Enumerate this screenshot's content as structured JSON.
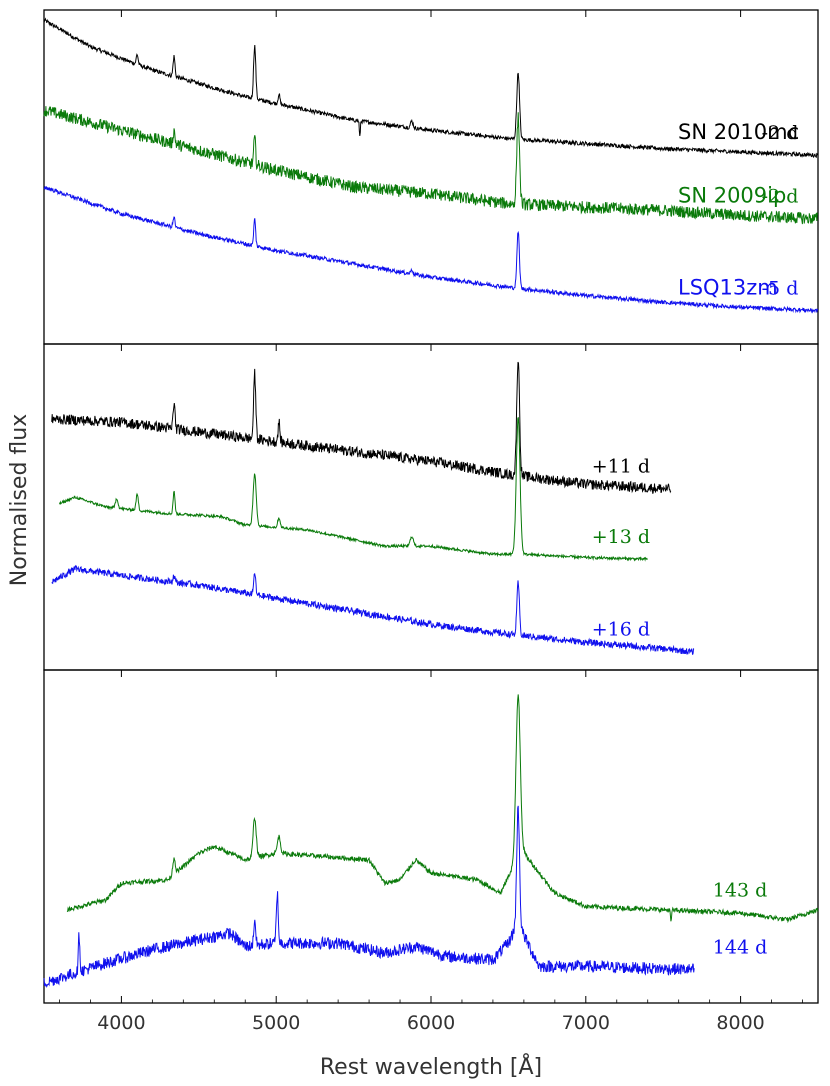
{
  "chart_data": {
    "type": "line",
    "xlabel": "Rest wavelength [Å]",
    "ylabel": "Normalised flux",
    "xlim": [
      3500,
      8500
    ],
    "xticks": [
      4000,
      5000,
      6000,
      7000,
      8000
    ],
    "tick_labels": [
      "4000",
      "5000",
      "6000",
      "7000",
      "8000"
    ],
    "grid": false,
    "colors": {
      "SN 2010mc": "#000000",
      "SN 2009ip": "#0a7a0a",
      "LSQ13zm": "#1010ee"
    },
    "lines": {
      "Hdelta": 4102,
      "Hgamma": 4340,
      "Hbeta": 4861,
      "FeII": 5018,
      "HeI": 5876,
      "Halpha": 6563
    },
    "panels": [
      {
        "ylim": [
          0,
          1
        ],
        "series": [
          {
            "object": "SN 2010mc",
            "epoch": "-2 d",
            "x_range": [
              3500,
              8500
            ],
            "continuum": [
              [
                3500,
                0.97
              ],
              [
                3800,
                0.89
              ],
              [
                4200,
                0.82
              ],
              [
                4800,
                0.74
              ],
              [
                5500,
                0.67
              ],
              [
                6000,
                0.64
              ],
              [
                6500,
                0.615
              ],
              [
                7000,
                0.6
              ],
              [
                7500,
                0.585
              ],
              [
                8000,
                0.575
              ],
              [
                8500,
                0.565
              ]
            ],
            "noise": 0.006,
            "lines": [
              [
                4102,
                0.03,
                6
              ],
              [
                4340,
                0.06,
                6
              ],
              [
                4861,
                0.16,
                7
              ],
              [
                5018,
                0.03,
                6
              ],
              [
                5876,
                0.02,
                8
              ],
              [
                6563,
                0.2,
                9
              ],
              [
                5540,
                -0.05,
                3
              ]
            ]
          },
          {
            "object": "SN 2009ip",
            "epoch": "-2 d",
            "x_range": [
              3500,
              8500
            ],
            "continuum": [
              [
                3500,
                0.7
              ],
              [
                4000,
                0.64
              ],
              [
                4500,
                0.58
              ],
              [
                5000,
                0.52
              ],
              [
                5500,
                0.47
              ],
              [
                6000,
                0.45
              ],
              [
                6500,
                0.42
              ],
              [
                7000,
                0.41
              ],
              [
                7500,
                0.4
              ],
              [
                8000,
                0.385
              ],
              [
                8500,
                0.375
              ]
            ],
            "noise": 0.018,
            "lines": [
              [
                4340,
                0.04,
                6
              ],
              [
                4861,
                0.08,
                6
              ],
              [
                6563,
                0.26,
                9
              ]
            ]
          },
          {
            "object": "LSQ13zm",
            "epoch": "-5 d",
            "x_range": [
              3500,
              8500
            ],
            "continuum": [
              [
                3500,
                0.47
              ],
              [
                4000,
                0.39
              ],
              [
                4500,
                0.33
              ],
              [
                5000,
                0.28
              ],
              [
                5500,
                0.24
              ],
              [
                6000,
                0.2
              ],
              [
                6500,
                0.17
              ],
              [
                7000,
                0.145
              ],
              [
                7500,
                0.125
              ],
              [
                8000,
                0.11
              ],
              [
                8500,
                0.1
              ]
            ],
            "noise": 0.006,
            "lines": [
              [
                4340,
                0.03,
                6
              ],
              [
                4861,
                0.08,
                6
              ],
              [
                5876,
                0.015,
                6
              ],
              [
                6563,
                0.17,
                8
              ]
            ]
          }
        ]
      },
      {
        "ylim": [
          0,
          1
        ],
        "series": [
          {
            "object": "SN 2010mc",
            "epoch": "+11 d",
            "x_range": [
              3550,
              7550
            ],
            "continuum": [
              [
                3550,
                0.77
              ],
              [
                4000,
                0.76
              ],
              [
                4500,
                0.73
              ],
              [
                5000,
                0.7
              ],
              [
                5500,
                0.67
              ],
              [
                6000,
                0.64
              ],
              [
                6500,
                0.6
              ],
              [
                7000,
                0.57
              ],
              [
                7550,
                0.555
              ]
            ],
            "noise": 0.016,
            "lines": [
              [
                4340,
                0.08,
                6
              ],
              [
                4861,
                0.2,
                7
              ],
              [
                5018,
                0.06,
                6
              ],
              [
                6563,
                0.36,
                9
              ]
            ]
          },
          {
            "object": "SN 2009ip",
            "epoch": "+13 d",
            "x_range": [
              3600,
              7400
            ],
            "continuum": [
              [
                3600,
                0.51
              ],
              [
                3700,
                0.53
              ],
              [
                3900,
                0.5
              ],
              [
                4300,
                0.48
              ],
              [
                4500,
                0.475
              ],
              [
                4650,
                0.47
              ],
              [
                4800,
                0.445
              ],
              [
                5200,
                0.43
              ],
              [
                5500,
                0.4
              ],
              [
                5700,
                0.38
              ],
              [
                6000,
                0.38
              ],
              [
                6400,
                0.355
              ],
              [
                6600,
                0.355
              ],
              [
                7000,
                0.345
              ],
              [
                7400,
                0.34
              ]
            ],
            "noise": 0.004,
            "lines": [
              [
                3970,
                0.03,
                8
              ],
              [
                4102,
                0.05,
                7
              ],
              [
                4340,
                0.07,
                6
              ],
              [
                4861,
                0.16,
                10
              ],
              [
                5018,
                0.03,
                8
              ],
              [
                5876,
                0.03,
                10
              ],
              [
                6563,
                0.42,
                12
              ]
            ]
          },
          {
            "object": "LSQ13zm",
            "epoch": "+16 d",
            "x_range": [
              3550,
              7700
            ],
            "continuum": [
              [
                3550,
                0.27
              ],
              [
                3700,
                0.31
              ],
              [
                4000,
                0.29
              ],
              [
                4500,
                0.26
              ],
              [
                5000,
                0.22
              ],
              [
                5500,
                0.18
              ],
              [
                6000,
                0.14
              ],
              [
                6500,
                0.11
              ],
              [
                7000,
                0.085
              ],
              [
                7500,
                0.065
              ],
              [
                7700,
                0.055
              ]
            ],
            "noise": 0.01,
            "lines": [
              [
                4340,
                0.02,
                6
              ],
              [
                4861,
                0.07,
                6
              ],
              [
                6563,
                0.16,
                8
              ]
            ]
          }
        ]
      },
      {
        "ylim": [
          0,
          1
        ],
        "series": [
          {
            "object": "SN 2009ip",
            "epoch": "143 d",
            "x_range": [
              3650,
              8500
            ],
            "continuum": [
              [
                3650,
                0.28
              ],
              [
                3900,
                0.31
              ],
              [
                4000,
                0.36
              ],
              [
                4300,
                0.37
              ],
              [
                4500,
                0.45
              ],
              [
                4600,
                0.47
              ],
              [
                4800,
                0.43
              ],
              [
                5000,
                0.45
              ],
              [
                5300,
                0.44
              ],
              [
                5600,
                0.43
              ],
              [
                5700,
                0.36
              ],
              [
                5800,
                0.37
              ],
              [
                5900,
                0.43
              ],
              [
                6000,
                0.39
              ],
              [
                6300,
                0.37
              ],
              [
                6450,
                0.33
              ],
              [
                6520,
                0.4
              ],
              [
                6600,
                0.45
              ],
              [
                6800,
                0.33
              ],
              [
                7000,
                0.29
              ],
              [
                7500,
                0.28
              ],
              [
                8000,
                0.27
              ],
              [
                8300,
                0.25
              ],
              [
                8500,
                0.28
              ]
            ],
            "noise": 0.007,
            "lines": [
              [
                4340,
                0.05,
                8
              ],
              [
                4861,
                0.12,
                10
              ],
              [
                5018,
                0.05,
                10
              ],
              [
                6563,
                0.5,
                14
              ],
              [
                7550,
                -0.04,
                3
              ]
            ]
          },
          {
            "object": "LSQ13zm",
            "epoch": "144 d",
            "x_range": [
              3500,
              7700
            ],
            "continuum": [
              [
                3500,
                0.06
              ],
              [
                3900,
                0.12
              ],
              [
                4200,
                0.16
              ],
              [
                4500,
                0.19
              ],
              [
                4700,
                0.21
              ],
              [
                4800,
                0.17
              ],
              [
                5000,
                0.18
              ],
              [
                5400,
                0.18
              ],
              [
                5700,
                0.15
              ],
              [
                5900,
                0.17
              ],
              [
                6100,
                0.14
              ],
              [
                6400,
                0.13
              ],
              [
                6500,
                0.18
              ],
              [
                6560,
                0.24
              ],
              [
                6700,
                0.11
              ],
              [
                7000,
                0.11
              ],
              [
                7700,
                0.1
              ]
            ],
            "noise": 0.018,
            "lines": [
              [
                3727,
                0.11,
                5
              ],
              [
                4861,
                0.08,
                6
              ],
              [
                5007,
                0.15,
                6
              ],
              [
                6563,
                0.35,
                9
              ]
            ]
          }
        ]
      }
    ],
    "annotations": [
      {
        "panel": 1,
        "text": "SN 2010mc",
        "series": "SN 2010mc"
      },
      {
        "panel": 1,
        "text": "SN 2009ip",
        "series": "SN 2009ip"
      },
      {
        "panel": 1,
        "text": "LSQ13zm",
        "series": "LSQ13zm"
      }
    ]
  }
}
